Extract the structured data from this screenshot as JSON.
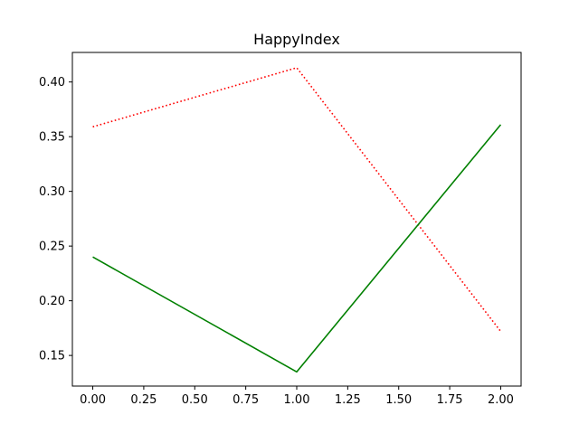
{
  "chart_data": {
    "type": "line",
    "title": "HappyIndex",
    "xlabel": "",
    "ylabel": "",
    "x": [
      0,
      1,
      2
    ],
    "xlim": [
      -0.1,
      2.1
    ],
    "ylim": [
      0.122,
      0.427
    ],
    "xticks": [
      0.0,
      0.25,
      0.5,
      0.75,
      1.0,
      1.25,
      1.5,
      1.75,
      2.0
    ],
    "xtick_labels": [
      "0.00",
      "0.25",
      "0.50",
      "0.75",
      "1.00",
      "1.25",
      "1.50",
      "1.75",
      "2.00"
    ],
    "yticks": [
      0.15,
      0.2,
      0.25,
      0.3,
      0.35,
      0.4
    ],
    "ytick_labels": [
      "0.15",
      "0.20",
      "0.25",
      "0.30",
      "0.35",
      "0.40"
    ],
    "grid": false,
    "series": [
      {
        "values": [
          0.359,
          0.413,
          0.172
        ],
        "color": "#ff0000",
        "line_style": "dotted"
      },
      {
        "values": [
          0.24,
          0.135,
          0.361
        ],
        "color": "#008000",
        "line_style": "solid"
      }
    ]
  }
}
